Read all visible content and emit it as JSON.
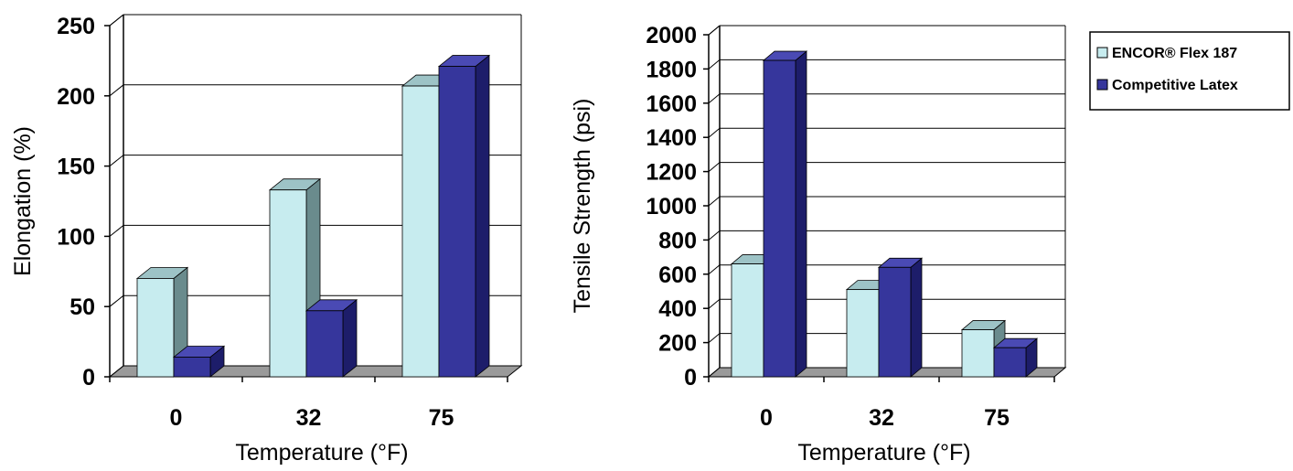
{
  "colors": {
    "series_front": [
      "#c7ecef",
      "#36369c"
    ],
    "series_top": [
      "#9dc3c6",
      "#4a4ab4"
    ],
    "series_side": [
      "#6a8b8d",
      "#1d1d6a"
    ],
    "floor": "#9a9a9a",
    "wall_line": "#000000"
  },
  "legend": {
    "items": [
      "ENCOR® Flex 187",
      "Competitive Latex"
    ]
  },
  "chart_data": [
    {
      "type": "bar",
      "categories": [
        "0",
        "32",
        "75"
      ],
      "series": [
        {
          "name": "ENCOR® Flex 187",
          "values": [
            70,
            133,
            207
          ]
        },
        {
          "name": "Competitive Latex",
          "values": [
            14,
            47,
            221
          ]
        }
      ],
      "xlabel": "Temperature (°F)",
      "ylabel": "Elongation (%)",
      "ylim": [
        0,
        250
      ],
      "yticks": [
        "0",
        "50",
        "100",
        "150",
        "200",
        "250"
      ],
      "grid": true
    },
    {
      "type": "bar",
      "categories": [
        "0",
        "32",
        "75"
      ],
      "series": [
        {
          "name": "ENCOR® Flex 187",
          "values": [
            660,
            510,
            275
          ]
        },
        {
          "name": "Competitive Latex",
          "values": [
            1850,
            640,
            170
          ]
        }
      ],
      "xlabel": "Temperature (°F)",
      "ylabel": "Tensile Strength (psi)",
      "ylim": [
        0,
        2000
      ],
      "yticks": [
        "0",
        "200",
        "400",
        "600",
        "800",
        "1000",
        "1200",
        "1400",
        "1600",
        "1800",
        "2000"
      ],
      "grid": true
    }
  ]
}
